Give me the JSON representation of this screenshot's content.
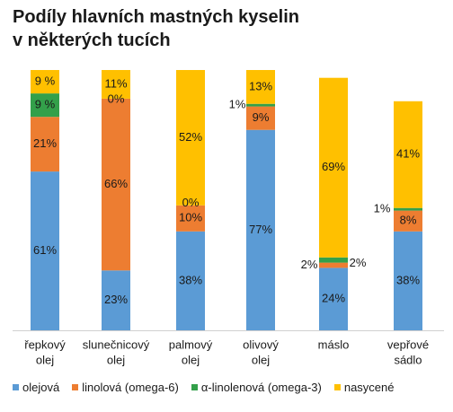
{
  "title": [
    "Podíly hlavních mastných kyselin",
    "v některých tucích"
  ],
  "colors": {
    "olejova": "#5b9bd5",
    "linolova": "#ed7d31",
    "alfa": "#33a04a",
    "nasycene": "#ffc000"
  },
  "chart_data": {
    "type": "bar",
    "stacked": true,
    "ylim": [
      0,
      100
    ],
    "grid": false,
    "legend": "bottom",
    "categories": [
      [
        "řepkový",
        "olej"
      ],
      [
        "slunečnicový",
        "olej"
      ],
      [
        "palmový",
        "olej"
      ],
      [
        "olivový",
        "olej"
      ],
      [
        "máslo"
      ],
      [
        "vepřové",
        "sádlo"
      ]
    ],
    "series": [
      {
        "name": "olejová",
        "key": "olejova",
        "values": [
          61,
          23,
          38,
          77,
          24,
          38
        ],
        "labels": [
          "61%",
          "23%",
          "38%",
          "77%",
          "24%",
          "38%"
        ]
      },
      {
        "name": "linolová (omega-6)",
        "key": "linolova",
        "values": [
          21,
          66,
          10,
          9,
          2,
          8
        ],
        "labels": [
          "21%",
          "66%",
          "10%",
          "9%",
          "2%",
          "8%"
        ]
      },
      {
        "name": "α-linolenová (omega-3)",
        "key": "alfa",
        "values": [
          9,
          0,
          0,
          1,
          2,
          1
        ],
        "labels": [
          "9 %",
          "",
          "",
          "1%",
          "2%",
          "1%"
        ]
      },
      {
        "name": "nasycené",
        "key": "nasycene",
        "values": [
          9,
          11,
          52,
          13,
          69,
          41
        ],
        "labels": [
          "9 %",
          "11%",
          "52%",
          "13%",
          "69%",
          "41%"
        ]
      }
    ],
    "extra_labels": [
      {
        "category": 1,
        "text": "0%"
      },
      {
        "category": 2,
        "text": "0%"
      }
    ]
  }
}
